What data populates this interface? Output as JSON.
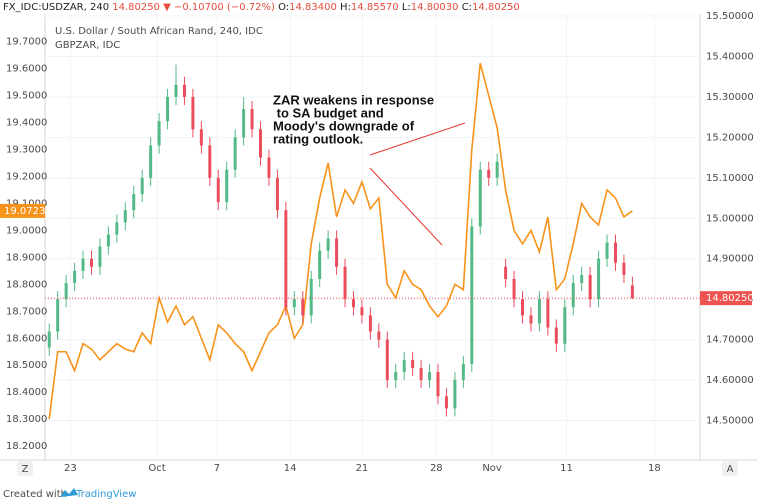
{
  "chart_data": {
    "type": "candlestick",
    "header": {
      "symbol": "FX_IDC:USDZAR, 240",
      "change": "14.80250 ▼ −0.10700 (−0.72%)",
      "o_key": "O:",
      "o": "14.83400",
      "h_key": "H:",
      "h": "14.85570",
      "l_key": "L:",
      "l": "14.80030",
      "c_key": "C:",
      "c": "14.80250"
    },
    "legend": [
      "U.S. Dollar / South African Rand, 240, IDC",
      "GBPZAR, IDC"
    ],
    "annotation": [
      "ZAR weakens in response",
      " to SA budget and",
      "Moody's downgrade of",
      "rating outlook."
    ],
    "footer": {
      "prefix": "Created with",
      "brand": "TradingView"
    },
    "buttons": [
      "Z",
      "A"
    ],
    "up_color": "#53b987",
    "down_color": "#eb4d5c",
    "open": [
      14.68,
      14.72,
      14.8,
      14.84,
      14.87,
      14.9,
      14.88,
      14.93,
      14.96,
      14.99,
      15.02,
      15.06,
      15.1,
      15.18,
      15.24,
      15.3,
      15.33,
      15.3,
      15.22,
      15.18,
      15.1,
      15.04,
      15.12,
      15.2,
      15.27,
      15.22,
      15.15,
      15.1,
      15.02,
      14.78,
      14.8,
      14.76,
      14.85,
      14.92,
      14.95,
      14.88,
      14.8,
      14.78,
      14.76,
      14.72,
      14.7,
      14.6,
      14.62,
      14.65,
      14.63,
      14.6,
      14.62,
      14.56,
      14.53,
      14.6,
      14.64,
      14.98,
      15.12,
      15.1,
      14.88,
      14.85,
      14.8,
      14.76,
      14.74,
      14.8,
      14.73,
      14.69,
      14.78,
      14.84,
      14.86,
      14.8,
      14.9,
      14.94,
      14.89,
      14.834
    ],
    "high": [
      14.74,
      14.82,
      14.86,
      14.89,
      14.92,
      14.92,
      14.95,
      14.98,
      15.01,
      15.04,
      15.08,
      15.12,
      15.2,
      15.26,
      15.32,
      15.38,
      15.35,
      15.32,
      15.24,
      15.2,
      15.12,
      15.14,
      15.22,
      15.3,
      15.29,
      15.24,
      15.17,
      15.12,
      15.04,
      14.82,
      14.82,
      14.87,
      14.94,
      14.97,
      14.97,
      14.9,
      14.82,
      14.8,
      14.78,
      14.74,
      14.72,
      14.64,
      14.67,
      14.67,
      14.65,
      14.64,
      14.64,
      14.58,
      14.62,
      14.66,
      15.0,
      15.14,
      15.14,
      15.16,
      14.9,
      14.87,
      14.82,
      14.78,
      14.82,
      14.82,
      14.75,
      14.8,
      14.86,
      14.88,
      14.88,
      14.92,
      14.96,
      14.96,
      14.91,
      14.8557
    ],
    "low": [
      14.66,
      14.7,
      14.78,
      14.82,
      14.85,
      14.86,
      14.86,
      14.91,
      14.94,
      14.97,
      15.0,
      15.04,
      15.08,
      15.16,
      15.22,
      15.28,
      15.28,
      15.2,
      15.16,
      15.08,
      15.02,
      15.02,
      15.1,
      15.18,
      15.2,
      15.13,
      15.08,
      15.0,
      14.76,
      14.76,
      14.74,
      14.74,
      14.83,
      14.9,
      14.86,
      14.78,
      14.76,
      14.74,
      14.7,
      14.68,
      14.58,
      14.58,
      14.6,
      14.61,
      14.58,
      14.58,
      14.54,
      14.51,
      14.51,
      14.58,
      14.62,
      14.96,
      15.08,
      15.08,
      14.83,
      14.78,
      14.74,
      14.72,
      14.72,
      14.71,
      14.67,
      14.67,
      14.76,
      14.82,
      14.78,
      14.78,
      14.88,
      14.87,
      14.84,
      14.8003
    ],
    "close": [
      14.72,
      14.8,
      14.84,
      14.87,
      14.9,
      14.88,
      14.93,
      14.96,
      14.99,
      15.02,
      15.06,
      15.1,
      15.18,
      15.24,
      15.3,
      15.33,
      15.3,
      15.22,
      15.18,
      15.1,
      15.04,
      15.12,
      15.2,
      15.27,
      15.22,
      15.15,
      15.1,
      15.02,
      14.78,
      14.8,
      14.76,
      14.85,
      14.92,
      14.95,
      14.88,
      14.8,
      14.78,
      14.76,
      14.72,
      14.7,
      14.6,
      14.62,
      14.65,
      14.63,
      14.6,
      14.62,
      14.56,
      14.53,
      14.6,
      14.64,
      14.98,
      15.12,
      15.1,
      15.14,
      14.85,
      14.8,
      14.76,
      14.74,
      14.8,
      14.73,
      14.69,
      14.78,
      14.84,
      14.86,
      14.8,
      14.9,
      14.94,
      14.89,
      14.86,
      14.8025
    ],
    "price_line": {
      "value": 14.8025,
      "label": "14.80250",
      "color": "#ef5350"
    },
    "series": [
      {
        "name": "GBPZAR",
        "color": "#f7931a",
        "axis": "y2",
        "values": [
          18.3,
          18.55,
          18.55,
          18.48,
          18.58,
          18.56,
          18.52,
          18.55,
          18.58,
          18.56,
          18.55,
          18.62,
          18.58,
          18.75,
          18.66,
          18.72,
          18.65,
          18.68,
          18.6,
          18.52,
          18.65,
          18.62,
          18.58,
          18.55,
          18.48,
          18.55,
          18.62,
          18.65,
          18.72,
          18.6,
          18.65,
          18.95,
          19.12,
          19.25,
          19.05,
          19.15,
          19.1,
          19.18,
          19.08,
          19.12,
          18.8,
          18.75,
          18.85,
          18.8,
          18.78,
          18.72,
          18.68,
          18.72,
          18.8,
          18.78,
          19.3,
          19.62,
          19.5,
          19.38,
          19.15,
          19.0,
          18.95,
          19.0,
          18.92,
          19.05,
          18.78,
          18.82,
          18.95,
          19.1,
          19.05,
          19.02,
          19.15,
          19.12,
          19.05,
          19.0723
        ],
        "last": {
          "value": 19.0723,
          "label": "19.0723"
        }
      }
    ],
    "xlim": [
      -0.5,
      77
    ],
    "xticks": [
      {
        "value": 2.5,
        "label": "23"
      },
      {
        "value": 12.75,
        "label": "Oct"
      },
      {
        "value": 19.85,
        "label": "7"
      },
      {
        "value": 28.5,
        "label": "14"
      },
      {
        "value": 37,
        "label": "21"
      },
      {
        "value": 45.8,
        "label": "28"
      },
      {
        "value": 52.4,
        "label": "Nov"
      },
      {
        "value": 61.2,
        "label": "11"
      },
      {
        "value": 71.6,
        "label": "18"
      }
    ],
    "ylim": [
      14.39,
      15.51
    ],
    "yticks": [
      {
        "value": 14.5,
        "label": "14.50000"
      },
      {
        "value": 14.6,
        "label": "14.60000"
      },
      {
        "value": 14.7,
        "label": "14.70000"
      },
      {
        "value": 14.8,
        "label": "14.80000"
      },
      {
        "value": 14.9,
        "label": "14.90000"
      },
      {
        "value": 15.0,
        "label": "15.00000"
      },
      {
        "value": 15.1,
        "label": "15.10000"
      },
      {
        "value": 15.2,
        "label": "15.20000"
      },
      {
        "value": 15.3,
        "label": "15.30000"
      },
      {
        "value": 15.4,
        "label": "15.40000"
      },
      {
        "value": 15.5,
        "label": "15.50000"
      }
    ],
    "y2lim": [
      18.13,
      19.81
    ],
    "y2ticks": [
      {
        "value": 18.2,
        "label": "18.2000"
      },
      {
        "value": 18.3,
        "label": "18.3000"
      },
      {
        "value": 18.4,
        "label": "18.4000"
      },
      {
        "value": 18.5,
        "label": "18.5000"
      },
      {
        "value": 18.6,
        "label": "18.6000"
      },
      {
        "value": 18.7,
        "label": "18.7000"
      },
      {
        "value": 18.8,
        "label": "18.8000"
      },
      {
        "value": 18.9,
        "label": "18.9000"
      },
      {
        "value": 19.0,
        "label": "19.0000"
      },
      {
        "value": 19.1,
        "label": "19.1000"
      },
      {
        "value": 19.2,
        "label": "19.2000"
      },
      {
        "value": 19.3,
        "label": "19.3000"
      },
      {
        "value": 19.4,
        "label": "19.4000"
      },
      {
        "value": 19.5,
        "label": "19.5000"
      },
      {
        "value": 19.6,
        "label": "19.6000"
      },
      {
        "value": 19.7,
        "label": "19.7000"
      }
    ],
    "grid": true
  }
}
